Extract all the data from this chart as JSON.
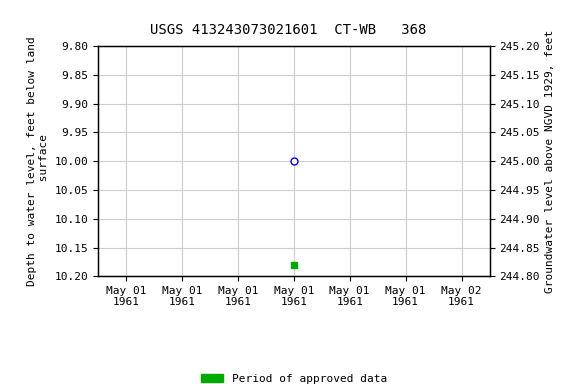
{
  "title": "USGS 413243073021601  CT-WB   368",
  "ylabel_left": "Depth to water level, feet below land\n surface",
  "ylabel_right": "Groundwater level above NGVD 1929, feet",
  "ylim_left_top": 9.8,
  "ylim_left_bottom": 10.2,
  "ylim_right_bottom": 244.8,
  "ylim_right_top": 245.2,
  "yticks_left": [
    9.8,
    9.85,
    9.9,
    9.95,
    10.0,
    10.05,
    10.1,
    10.15,
    10.2
  ],
  "yticks_right": [
    244.8,
    244.85,
    244.9,
    244.95,
    245.0,
    245.05,
    245.1,
    245.15,
    245.2
  ],
  "xtick_labels": [
    "May 01\n1961",
    "May 01\n1961",
    "May 01\n1961",
    "May 01\n1961",
    "May 01\n1961",
    "May 01\n1961",
    "May 02\n1961"
  ],
  "xtick_positions": [
    0,
    1,
    2,
    3,
    4,
    5,
    6
  ],
  "xlim": [
    -0.5,
    6.5
  ],
  "data_blue_x": 3,
  "data_blue_y": 10.0,
  "data_green_x": 3,
  "data_green_y": 10.18,
  "legend_label": "Period of approved data",
  "legend_color": "#00aa00",
  "background_color": "#ffffff",
  "grid_color": "#cccccc",
  "title_fontsize": 10,
  "label_fontsize": 8,
  "tick_fontsize": 8
}
